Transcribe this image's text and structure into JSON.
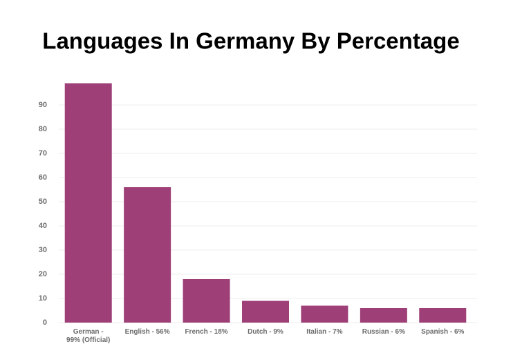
{
  "chart_data": {
    "type": "bar",
    "title": "Languages In Germany By Percentage",
    "categories": [
      "German - 99% (Official)",
      "English - 56%",
      "French - 18%",
      "Dutch - 9%",
      "Italian - 7%",
      "Russian - 6%",
      "Spanish - 6%"
    ],
    "values": [
      99,
      56,
      18,
      9,
      7,
      6,
      6
    ],
    "color": "#9e3f78",
    "ylim": [
      0,
      100
    ],
    "yticks": [
      0,
      10,
      20,
      30,
      40,
      50,
      60,
      70,
      80,
      90
    ],
    "grid": true
  }
}
